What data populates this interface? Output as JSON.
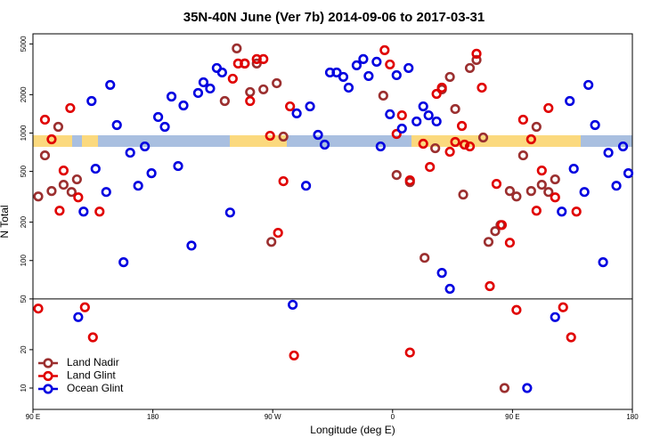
{
  "chart_data": {
    "type": "scatter",
    "title": "35N-40N June (Ver 7b)   2014-09-06 to 2017-03-31",
    "x_label": "Longitude (deg E)",
    "y_label": "N Total",
    "xlim": [
      90,
      540
    ],
    "xticks": [
      {
        "value": 90,
        "label": "90 E"
      },
      {
        "value": 180,
        "label": "180"
      },
      {
        "value": 270,
        "label": "90 W"
      },
      {
        "value": 360,
        "label": "0"
      },
      {
        "value": 450,
        "label": "90 E"
      },
      {
        "value": 540,
        "label": "180"
      }
    ],
    "ylim": [
      6.8,
      6000
    ],
    "yticks": [
      10,
      20,
      50,
      100,
      200,
      500,
      1000,
      2000,
      5000
    ],
    "y_scale": "log",
    "panel_split": 50,
    "legend": "lower left",
    "series": [
      {
        "name": "Land Nadir",
        "color": "#9b2f2f",
        "x": [
          94,
          99,
          104,
          109,
          113,
          119,
          123,
          234,
          243,
          249,
          253,
          258,
          263,
          269,
          273,
          278,
          353,
          363,
          373,
          384,
          392,
          397,
          403,
          407,
          413,
          418,
          423,
          428,
          432,
          437,
          441,
          444,
          448,
          453,
          458,
          464,
          468,
          472,
          477,
          482
        ],
        "values": [
          318,
          668,
          351,
          1119,
          393,
          345,
          433,
          1783,
          4613,
          3510,
          2096,
          3510,
          2200,
          140,
          2460,
          937,
          1965,
          469,
          412,
          105,
          760,
          2200,
          2755,
          1544,
          329,
          3236,
          3741,
          922,
          140,
          170,
          190,
          10,
          351,
          318,
          668,
          351,
          1119,
          393,
          345,
          433
        ]
      },
      {
        "name": "Land Glint",
        "color": "#e00000",
        "x": [
          94,
          99,
          104,
          110,
          113,
          118,
          124,
          129,
          135,
          140,
          240,
          244,
          249,
          253,
          258,
          263,
          268,
          274,
          278,
          283,
          286,
          354,
          358,
          363,
          367,
          373,
          373,
          383,
          388,
          393,
          397,
          403,
          407,
          412,
          414,
          418,
          423,
          427,
          433,
          438,
          442,
          448,
          453,
          458,
          464,
          468,
          472,
          477,
          482,
          488,
          494,
          498
        ],
        "values": [
          42,
          1273,
          893,
          246,
          508,
          1570,
          313,
          43,
          25,
          242,
          2668,
          3510,
          3510,
          1783,
          3802,
          3802,
          952,
          165,
          419,
          1618,
          18,
          4467,
          3451,
          984,
          1377,
          19,
          426,
          824,
          542,
          2028,
          2270,
          713,
          851,
          1137,
          811,
          785,
          4188,
          2270,
          63,
          399,
          190,
          138,
          41,
          1273,
          893,
          246,
          508,
          1570,
          313,
          43,
          25,
          242
        ]
      },
      {
        "name": "Ocean Glint",
        "color": "#0000e0",
        "x": [
          124,
          128,
          134,
          137,
          145,
          148,
          153,
          158,
          163,
          169,
          174,
          179,
          184,
          189,
          194,
          199,
          203,
          209,
          214,
          218,
          223,
          228,
          232,
          238,
          285,
          288,
          295,
          298,
          304,
          309,
          313,
          318,
          323,
          327,
          333,
          338,
          342,
          348,
          351,
          358,
          363,
          367,
          372,
          378,
          383,
          387,
          393,
          397,
          403,
          461,
          482,
          487,
          493,
          496,
          504,
          507,
          512,
          518,
          522,
          528,
          533,
          537
        ],
        "values": [
          36,
          242,
          1783,
          525,
          345,
          2384,
          1155,
          97,
          701,
          386,
          785,
          484,
          1336,
          1119,
          1932,
          551,
          1645,
          131,
          2062,
          2500,
          2235,
          3236,
          2985,
          238,
          45,
          1426,
          386,
          1618,
          968,
          811,
          2985,
          2985,
          2755,
          2270,
          3396,
          3802,
          2800,
          3622,
          785,
          1403,
          2844,
          1084,
          3236,
          1233,
          1618,
          1377,
          1233,
          80,
          60,
          10,
          36,
          242,
          1783,
          525,
          345,
          2384,
          1155,
          97,
          701,
          386,
          785,
          484
        ]
      }
    ]
  }
}
